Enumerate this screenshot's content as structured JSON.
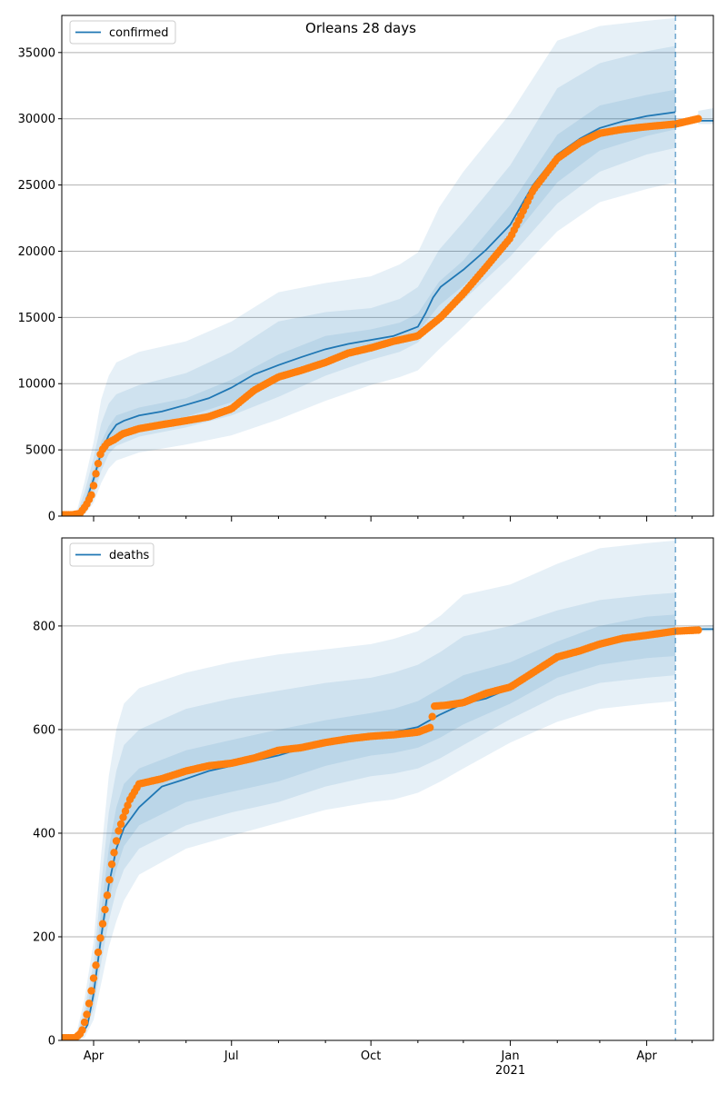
{
  "title": "Orleans 28 days",
  "colors": {
    "model": "#1f77b4",
    "observed": "#ff7f0e",
    "grid": "#b0b0b0",
    "band": "#1f77b4"
  },
  "chart_data": [
    {
      "type": "line",
      "panel": "top",
      "legend": "confirmed",
      "legend_position": "top-left",
      "grid": "y",
      "x_axis": "date",
      "xlim": [
        "2020-03-11",
        "2021-05-15"
      ],
      "ylim": [
        0,
        37800
      ],
      "yticks": [
        0,
        5000,
        10000,
        15000,
        20000,
        25000,
        30000,
        35000
      ],
      "forecast_start": "2021-04-20",
      "series": [
        {
          "name": "confirmed",
          "kind": "model_median",
          "x": [
            "2020-03-11",
            "2020-03-16",
            "2020-03-21",
            "2020-03-26",
            "2020-04-01",
            "2020-04-06",
            "2020-04-11",
            "2020-04-16",
            "2020-04-21",
            "2020-05-01",
            "2020-05-16",
            "2020-06-01",
            "2020-06-16",
            "2020-07-01",
            "2020-07-16",
            "2020-08-01",
            "2020-08-16",
            "2020-09-01",
            "2020-09-16",
            "2020-10-01",
            "2020-10-16",
            "2020-11-01",
            "2020-11-06",
            "2020-11-11",
            "2020-11-16",
            "2020-12-01",
            "2020-12-16",
            "2021-01-01",
            "2021-01-16",
            "2021-02-01",
            "2021-02-16",
            "2021-03-01",
            "2021-03-16",
            "2021-04-01",
            "2021-04-20"
          ],
          "y": [
            0,
            0,
            80,
            800,
            2800,
            4800,
            6100,
            6900,
            7200,
            7600,
            7900,
            8400,
            8900,
            9700,
            10700,
            11400,
            12000,
            12600,
            13000,
            13300,
            13600,
            14300,
            15300,
            16500,
            17300,
            18600,
            20100,
            22000,
            25000,
            27300,
            28500,
            29300,
            29800,
            30200,
            30500
          ]
        },
        {
          "name": "",
          "kind": "model_median_continuation",
          "x": [
            "2021-05-05",
            "2021-05-15"
          ],
          "y": [
            29850,
            29850
          ]
        },
        {
          "name": "",
          "kind": "observed",
          "x": [
            "2020-03-11",
            "2020-03-18",
            "2020-03-23",
            "2020-03-27",
            "2020-03-31",
            "2020-04-03",
            "2020-04-06",
            "2020-04-10",
            "2020-04-15",
            "2020-04-20",
            "2020-05-01",
            "2020-05-16",
            "2020-06-01",
            "2020-06-16",
            "2020-07-01",
            "2020-07-16",
            "2020-08-01",
            "2020-08-16",
            "2020-09-01",
            "2020-09-16",
            "2020-10-01",
            "2020-10-16",
            "2020-11-01",
            "2020-11-16",
            "2020-12-01",
            "2020-12-16",
            "2021-01-01",
            "2021-01-16",
            "2021-02-01",
            "2021-02-16",
            "2021-03-01",
            "2021-03-16",
            "2021-04-01",
            "2021-04-20",
            "2021-05-05"
          ],
          "y": [
            100,
            100,
            200,
            800,
            1700,
            3500,
            4900,
            5500,
            5800,
            6200,
            6600,
            6900,
            7200,
            7500,
            8100,
            9500,
            10500,
            11000,
            11600,
            12300,
            12700,
            13200,
            13600,
            15000,
            16800,
            18800,
            21000,
            24600,
            27000,
            28200,
            28900,
            29200,
            29400,
            29600,
            30000
          ]
        }
      ],
      "bands": {
        "x": [
          "2020-03-11",
          "2020-03-16",
          "2020-03-21",
          "2020-03-26",
          "2020-04-01",
          "2020-04-06",
          "2020-04-11",
          "2020-04-16",
          "2020-05-01",
          "2020-06-01",
          "2020-07-01",
          "2020-08-01",
          "2020-09-01",
          "2020-10-01",
          "2020-10-20",
          "2020-11-01",
          "2020-11-15",
          "2020-12-01",
          "2021-01-01",
          "2021-02-01",
          "2021-03-01",
          "2021-04-01",
          "2021-04-20"
        ],
        "lower_outer": [
          0,
          0,
          0,
          100,
          1000,
          2500,
          3600,
          4200,
          4800,
          5400,
          6100,
          7300,
          8700,
          9900,
          10500,
          11000,
          12600,
          14300,
          17800,
          21500,
          23700,
          24700,
          25200
        ],
        "lower_mid": [
          0,
          0,
          0,
          300,
          1600,
          3400,
          4700,
          5300,
          6000,
          6700,
          7600,
          9000,
          10600,
          11800,
          12400,
          13100,
          14900,
          16300,
          19600,
          23600,
          26000,
          27300,
          27800
        ],
        "lower_inner": [
          0,
          0,
          20,
          500,
          2200,
          4200,
          5500,
          6200,
          6900,
          7500,
          8600,
          10200,
          11800,
          12700,
          13200,
          13900,
          15900,
          17400,
          20800,
          25200,
          27600,
          28700,
          29200
        ],
        "upper_inner": [
          0,
          0,
          100,
          1200,
          3400,
          5600,
          6800,
          7600,
          8200,
          8900,
          10300,
          12200,
          13600,
          14100,
          14600,
          15300,
          17700,
          19300,
          23500,
          28800,
          31000,
          31800,
          32200
        ],
        "upper_mid": [
          0,
          0,
          200,
          1800,
          4400,
          7000,
          8500,
          9200,
          9900,
          10800,
          12400,
          14700,
          15400,
          15700,
          16400,
          17300,
          20100,
          22200,
          26500,
          32300,
          34200,
          35100,
          35500
        ],
        "upper_outer": [
          0,
          0,
          400,
          2600,
          5600,
          8800,
          10600,
          11600,
          12400,
          13200,
          14700,
          16900,
          17600,
          18100,
          19000,
          19900,
          23300,
          26000,
          30400,
          35900,
          37000,
          37400,
          37600
        ]
      },
      "tail_band": {
        "x": [
          "2021-05-05",
          "2021-05-15"
        ],
        "lower": [
          29600,
          29600
        ],
        "upper": [
          30600,
          30800
        ]
      }
    },
    {
      "type": "line",
      "panel": "bottom",
      "legend": "deaths",
      "legend_position": "top-left",
      "grid": "y",
      "x_axis": "date",
      "xlim": [
        "2020-03-11",
        "2021-05-15"
      ],
      "ylim": [
        0,
        970
      ],
      "yticks": [
        0,
        200,
        400,
        600,
        800
      ],
      "xticks": [
        {
          "date": "2020-04-01",
          "label": "Apr"
        },
        {
          "date": "2020-07-01",
          "label": "Jul"
        },
        {
          "date": "2020-10-01",
          "label": "Oct"
        },
        {
          "date": "2021-01-01",
          "label": "Jan",
          "sublabel": "2021"
        },
        {
          "date": "2021-04-01",
          "label": "Apr"
        }
      ],
      "minor_xticks": [
        "2020-05-01",
        "2020-06-01",
        "2020-08-01",
        "2020-09-01",
        "2020-11-01",
        "2020-12-01",
        "2021-02-01",
        "2021-03-01",
        "2021-05-01"
      ],
      "forecast_start": "2021-04-20",
      "series": [
        {
          "name": "deaths",
          "kind": "model_median",
          "x": [
            "2020-03-11",
            "2020-03-18",
            "2020-03-23",
            "2020-03-28",
            "2020-04-01",
            "2020-04-06",
            "2020-04-11",
            "2020-04-16",
            "2020-04-21",
            "2020-05-01",
            "2020-05-16",
            "2020-06-01",
            "2020-06-16",
            "2020-07-01",
            "2020-08-01",
            "2020-09-01",
            "2020-10-01",
            "2020-10-16",
            "2020-11-01",
            "2020-11-15",
            "2020-12-01",
            "2020-12-16",
            "2021-01-01",
            "2021-01-16",
            "2021-02-01",
            "2021-02-16",
            "2021-03-01",
            "2021-04-01",
            "2021-04-20"
          ],
          "y": [
            0,
            0,
            5,
            30,
            90,
            200,
            300,
            370,
            410,
            450,
            490,
            505,
            520,
            530,
            550,
            578,
            592,
            595,
            605,
            628,
            650,
            660,
            680,
            705,
            735,
            757,
            770,
            784,
            790
          ]
        },
        {
          "name": "",
          "kind": "model_median_continuation",
          "x": [
            "2021-05-05",
            "2021-05-15"
          ],
          "y": [
            794,
            794
          ]
        },
        {
          "name": "",
          "kind": "observed",
          "x": [
            "2020-03-11",
            "2020-03-20",
            "2020-03-24",
            "2020-03-28",
            "2020-04-01",
            "2020-04-04",
            "2020-04-07",
            "2020-04-10",
            "2020-04-13",
            "2020-04-17",
            "2020-04-21",
            "2020-04-25",
            "2020-05-01",
            "2020-05-16",
            "2020-06-01",
            "2020-06-16",
            "2020-07-01",
            "2020-07-16",
            "2020-08-01",
            "2020-08-16",
            "2020-09-01",
            "2020-09-16",
            "2020-10-01",
            "2020-10-16",
            "2020-11-01",
            "2020-11-10",
            "2020-11-11",
            "2020-11-20",
            "2020-12-01",
            "2020-12-16",
            "2021-01-01",
            "2021-01-16",
            "2021-02-01",
            "2021-02-16",
            "2021-03-01",
            "2021-03-16",
            "2021-04-01",
            "2021-04-20",
            "2021-05-05"
          ],
          "y": [
            5,
            5,
            15,
            55,
            120,
            170,
            225,
            280,
            340,
            400,
            435,
            465,
            495,
            505,
            520,
            530,
            535,
            545,
            560,
            565,
            575,
            582,
            587,
            590,
            595,
            605,
            645,
            647,
            652,
            670,
            682,
            710,
            740,
            752,
            765,
            776,
            782,
            790,
            792
          ]
        }
      ],
      "bands": {
        "x": [
          "2020-03-11",
          "2020-03-16",
          "2020-03-21",
          "2020-03-26",
          "2020-04-01",
          "2020-04-06",
          "2020-04-11",
          "2020-04-16",
          "2020-04-21",
          "2020-05-01",
          "2020-06-01",
          "2020-07-01",
          "2020-08-01",
          "2020-09-01",
          "2020-10-01",
          "2020-10-16",
          "2020-11-01",
          "2020-11-16",
          "2020-12-01",
          "2021-01-01",
          "2021-02-01",
          "2021-03-01",
          "2021-04-01",
          "2021-04-20"
        ],
        "lower_outer": [
          0,
          0,
          0,
          5,
          40,
          110,
          180,
          230,
          270,
          320,
          370,
          395,
          420,
          445,
          460,
          465,
          478,
          500,
          525,
          575,
          615,
          640,
          650,
          655
        ],
        "lower_mid": [
          0,
          0,
          2,
          15,
          60,
          150,
          230,
          290,
          330,
          370,
          415,
          440,
          460,
          490,
          510,
          515,
          525,
          545,
          570,
          620,
          665,
          690,
          700,
          705
        ],
        "lower_inner": [
          0,
          0,
          3,
          25,
          80,
          180,
          270,
          330,
          375,
          415,
          460,
          480,
          500,
          530,
          550,
          555,
          565,
          585,
          610,
          650,
          700,
          725,
          738,
          742
        ],
        "upper_inner": [
          0,
          0,
          8,
          45,
          120,
          250,
          370,
          450,
          495,
          525,
          560,
          580,
          600,
          618,
          632,
          640,
          655,
          680,
          705,
          730,
          770,
          800,
          818,
          822
        ],
        "upper_mid": [
          0,
          0,
          12,
          60,
          150,
          300,
          440,
          520,
          570,
          600,
          640,
          660,
          675,
          690,
          700,
          710,
          725,
          750,
          780,
          800,
          830,
          850,
          860,
          864
        ],
        "upper_outer": [
          0,
          0,
          18,
          80,
          190,
          360,
          510,
          600,
          650,
          680,
          710,
          730,
          745,
          755,
          765,
          775,
          790,
          820,
          860,
          880,
          920,
          950,
          960,
          965
        ]
      },
      "tail_band": {
        "x": [
          "2021-05-05",
          "2021-05-15"
        ],
        "lower": [
          790,
          790
        ],
        "upper": [
          800,
          802
        ]
      }
    }
  ]
}
